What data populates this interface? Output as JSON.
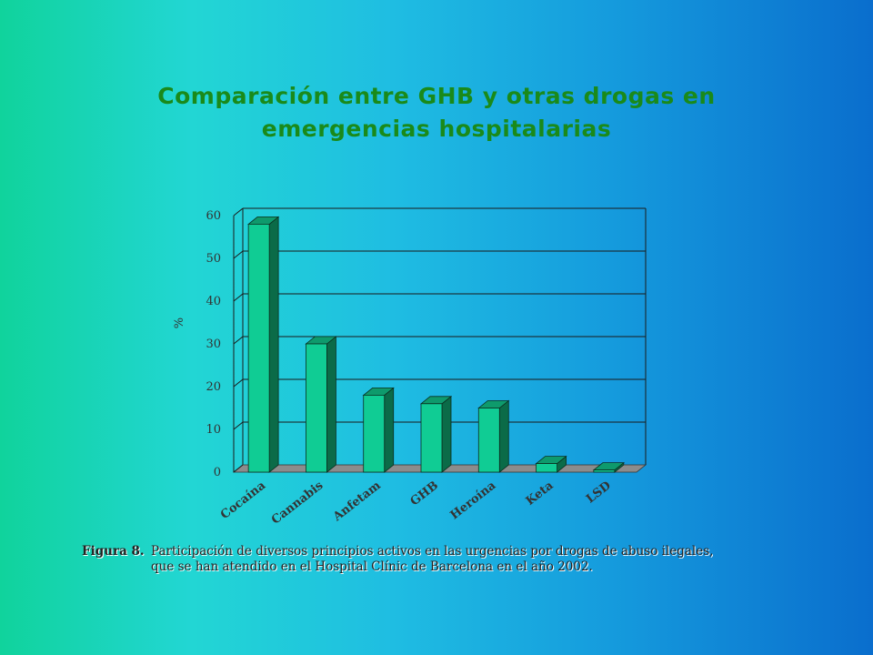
{
  "title": {
    "line1": "Comparación entre GHB y otras drogas en",
    "line2": "emergencias hospitalarias"
  },
  "chart_data": {
    "type": "bar",
    "categories": [
      "Cocaína",
      "Cannabis",
      "Anfetam",
      "GHB",
      "Heroína",
      "Keta",
      "LSD"
    ],
    "values": [
      58,
      30,
      18,
      16,
      15,
      2,
      0.5
    ],
    "yticks": [
      "0",
      "10",
      "20",
      "30",
      "40",
      "50",
      "60"
    ],
    "ylim": [
      0,
      60
    ],
    "ylabel": "%",
    "xlabel": "",
    "grid": true,
    "colors": {
      "bar_front": "#10cc94",
      "bar_side": "#0b6b48",
      "bar_top": "#0e9a6c",
      "floor": "#8c8c8c",
      "grid": "#1a1a1a"
    }
  },
  "caption": {
    "label": "Figura 8.",
    "line1": "Participación de diversos principios activos en las urgencias por drogas de abuso ilegales,",
    "line2": "que se han atendido en el Hospital Clínic de Barcelona en el año 2002."
  }
}
